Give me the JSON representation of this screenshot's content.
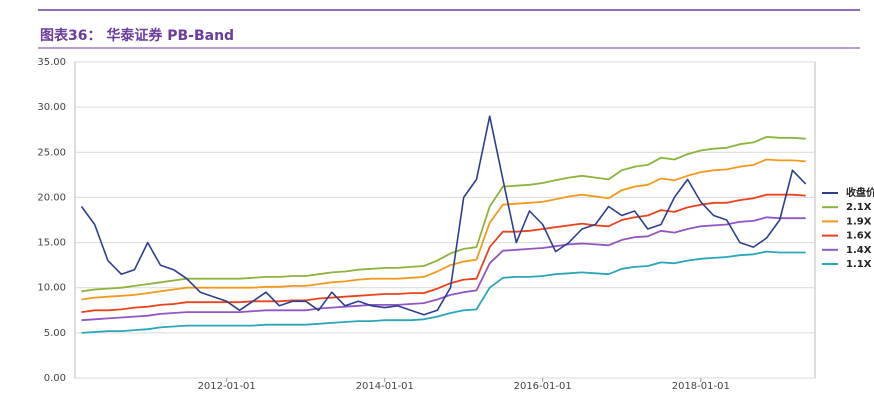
{
  "chart_data": {
    "type": "line",
    "title": "图表36： 华泰证券 PB-Band",
    "x": [
      "2010-03-01",
      "2010-05-01",
      "2010-07-01",
      "2010-09-01",
      "2010-11-01",
      "2011-01-01",
      "2011-03-01",
      "2011-05-01",
      "2011-07-01",
      "2011-09-01",
      "2011-11-01",
      "2012-01-01",
      "2012-03-01",
      "2012-05-01",
      "2012-07-01",
      "2012-09-01",
      "2012-11-01",
      "2013-01-01",
      "2013-03-01",
      "2013-05-01",
      "2013-07-01",
      "2013-09-01",
      "2013-11-01",
      "2014-01-01",
      "2014-03-01",
      "2014-05-01",
      "2014-07-01",
      "2014-09-01",
      "2014-11-01",
      "2015-01-01",
      "2015-03-01",
      "2015-05-01",
      "2015-07-01",
      "2015-09-01",
      "2015-11-01",
      "2016-01-01",
      "2016-03-01",
      "2016-05-01",
      "2016-07-01",
      "2016-09-01",
      "2016-11-01",
      "2017-01-01",
      "2017-03-01",
      "2017-05-01",
      "2017-07-01",
      "2017-09-01",
      "2017-11-01",
      "2018-01-01",
      "2018-03-01",
      "2018-05-01",
      "2018-07-01",
      "2018-09-01",
      "2018-11-01",
      "2019-01-01",
      "2019-03-01",
      "2019-05-01"
    ],
    "series": [
      {
        "name": "收盘价",
        "color": "#2e3f8f",
        "values": [
          19.0,
          17.0,
          13.0,
          11.5,
          12.0,
          15.0,
          12.5,
          12.0,
          11.0,
          9.5,
          9.0,
          8.5,
          7.5,
          8.5,
          9.5,
          8.0,
          8.5,
          8.5,
          7.5,
          9.5,
          8.0,
          8.5,
          8.0,
          7.8,
          8.0,
          7.5,
          7.0,
          7.5,
          10.0,
          20.0,
          22.0,
          29.0,
          22.0,
          15.0,
          18.5,
          17.0,
          14.0,
          15.0,
          16.5,
          17.0,
          19.0,
          18.0,
          18.5,
          16.5,
          17.0,
          20.0,
          22.0,
          19.5,
          18.0,
          17.5,
          15.0,
          14.5,
          15.5,
          17.5,
          23.0,
          21.5
        ]
      },
      {
        "name": "2.1X",
        "color": "#8db33a",
        "values": [
          9.6,
          9.8,
          9.9,
          10.0,
          10.2,
          10.4,
          10.6,
          10.8,
          11.0,
          11.0,
          11.0,
          11.0,
          11.0,
          11.1,
          11.2,
          11.2,
          11.3,
          11.3,
          11.5,
          11.7,
          11.8,
          12.0,
          12.1,
          12.2,
          12.2,
          12.3,
          12.4,
          13.0,
          13.8,
          14.3,
          14.5,
          19.0,
          21.2,
          21.3,
          21.4,
          21.6,
          21.9,
          22.2,
          22.4,
          22.2,
          22.0,
          23.0,
          23.4,
          23.6,
          24.4,
          24.2,
          24.8,
          25.2,
          25.4,
          25.5,
          25.9,
          26.1,
          26.7,
          26.6,
          26.6,
          26.5
        ]
      },
      {
        "name": "1.9X",
        "color": "#f39a1e",
        "values": [
          8.7,
          8.9,
          9.0,
          9.1,
          9.2,
          9.4,
          9.6,
          9.8,
          10.0,
          10.0,
          10.0,
          10.0,
          10.0,
          10.0,
          10.1,
          10.1,
          10.2,
          10.2,
          10.4,
          10.6,
          10.7,
          10.9,
          11.0,
          11.0,
          11.0,
          11.1,
          11.2,
          11.8,
          12.5,
          12.9,
          13.1,
          17.2,
          19.2,
          19.3,
          19.4,
          19.5,
          19.8,
          20.1,
          20.3,
          20.1,
          19.9,
          20.8,
          21.2,
          21.4,
          22.1,
          21.9,
          22.4,
          22.8,
          23.0,
          23.1,
          23.4,
          23.6,
          24.2,
          24.1,
          24.1,
          24.0
        ]
      },
      {
        "name": "1.6X",
        "color": "#e8431c",
        "values": [
          7.3,
          7.5,
          7.5,
          7.6,
          7.8,
          7.9,
          8.1,
          8.2,
          8.4,
          8.4,
          8.4,
          8.4,
          8.4,
          8.5,
          8.5,
          8.5,
          8.6,
          8.6,
          8.8,
          8.9,
          9.0,
          9.1,
          9.2,
          9.3,
          9.3,
          9.4,
          9.4,
          9.9,
          10.5,
          10.9,
          11.0,
          14.5,
          16.2,
          16.2,
          16.3,
          16.5,
          16.7,
          16.9,
          17.1,
          16.9,
          16.8,
          17.5,
          17.8,
          18.0,
          18.6,
          18.4,
          18.9,
          19.2,
          19.4,
          19.4,
          19.7,
          19.9,
          20.3,
          20.3,
          20.3,
          20.2
        ]
      },
      {
        "name": "1.4X",
        "color": "#9256c4",
        "values": [
          6.4,
          6.5,
          6.6,
          6.7,
          6.8,
          6.9,
          7.1,
          7.2,
          7.3,
          7.3,
          7.3,
          7.3,
          7.3,
          7.4,
          7.5,
          7.5,
          7.5,
          7.5,
          7.7,
          7.8,
          7.9,
          8.0,
          8.1,
          8.1,
          8.1,
          8.2,
          8.3,
          8.7,
          9.2,
          9.5,
          9.7,
          12.7,
          14.1,
          14.2,
          14.3,
          14.4,
          14.6,
          14.8,
          14.9,
          14.8,
          14.7,
          15.3,
          15.6,
          15.7,
          16.3,
          16.1,
          16.5,
          16.8,
          16.9,
          17.0,
          17.3,
          17.4,
          17.8,
          17.7,
          17.7,
          17.7
        ]
      },
      {
        "name": "1.1X",
        "color": "#2aa6b8",
        "values": [
          5.0,
          5.1,
          5.2,
          5.2,
          5.3,
          5.4,
          5.6,
          5.7,
          5.8,
          5.8,
          5.8,
          5.8,
          5.8,
          5.8,
          5.9,
          5.9,
          5.9,
          5.9,
          6.0,
          6.1,
          6.2,
          6.3,
          6.3,
          6.4,
          6.4,
          6.4,
          6.5,
          6.8,
          7.2,
          7.5,
          7.6,
          10.0,
          11.1,
          11.2,
          11.2,
          11.3,
          11.5,
          11.6,
          11.7,
          11.6,
          11.5,
          12.1,
          12.3,
          12.4,
          12.8,
          12.7,
          13.0,
          13.2,
          13.3,
          13.4,
          13.6,
          13.7,
          14.0,
          13.9,
          13.9,
          13.9
        ]
      }
    ],
    "xlim": [
      "2010-01-30",
      "2019-06-13"
    ],
    "xticks": [
      "2012-01-01",
      "2014-01-01",
      "2016-01-01",
      "2018-01-01"
    ],
    "ylim": [
      0,
      35
    ],
    "yticks": [
      {
        "value": 0,
        "label": "0.00"
      },
      {
        "value": 5,
        "label": "5.00"
      },
      {
        "value": 10,
        "label": "10.00"
      },
      {
        "value": 15,
        "label": "15.00"
      },
      {
        "value": 20,
        "label": "20.00"
      },
      {
        "value": 25,
        "label": "25.00"
      },
      {
        "value": 30,
        "label": "30.00"
      },
      {
        "value": 35,
        "label": "35.00"
      }
    ],
    "grid": true,
    "legend": "right"
  }
}
